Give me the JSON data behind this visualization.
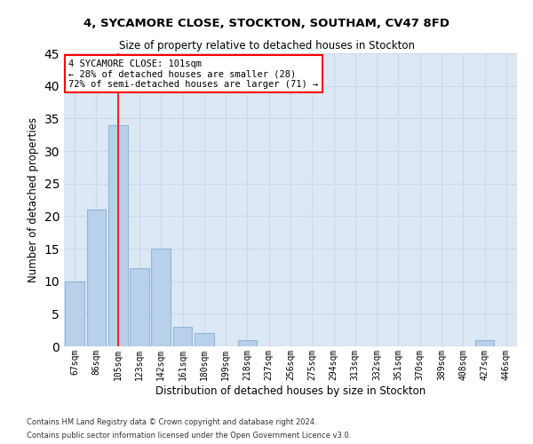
{
  "title_line1": "4, SYCAMORE CLOSE, STOCKTON, SOUTHAM, CV47 8FD",
  "title_line2": "Size of property relative to detached houses in Stockton",
  "xlabel": "Distribution of detached houses by size in Stockton",
  "ylabel": "Number of detached properties",
  "footer_line1": "Contains HM Land Registry data © Crown copyright and database right 2024.",
  "footer_line2": "Contains public sector information licensed under the Open Government Licence v3.0.",
  "bins": [
    "67sqm",
    "86sqm",
    "105sqm",
    "123sqm",
    "142sqm",
    "161sqm",
    "180sqm",
    "199sqm",
    "218sqm",
    "237sqm",
    "256sqm",
    "275sqm",
    "294sqm",
    "313sqm",
    "332sqm",
    "351sqm",
    "370sqm",
    "389sqm",
    "408sqm",
    "427sqm",
    "446sqm"
  ],
  "values": [
    10,
    21,
    34,
    12,
    15,
    3,
    2,
    0,
    1,
    0,
    0,
    0,
    0,
    0,
    0,
    0,
    0,
    0,
    0,
    1,
    0
  ],
  "bar_color": "#b8d0ea",
  "bar_edge_color": "#90b8d8",
  "grid_color": "#ccd8e8",
  "background_color": "#dce8f4",
  "red_line_bin_index": 2,
  "annotation_title": "4 SYCAMORE CLOSE: 101sqm",
  "annotation_line1": "← 28% of detached houses are smaller (28)",
  "annotation_line2": "72% of semi-detached houses are larger (71) →",
  "ylim": [
    0,
    45
  ],
  "yticks": [
    0,
    5,
    10,
    15,
    20,
    25,
    30,
    35,
    40,
    45
  ]
}
